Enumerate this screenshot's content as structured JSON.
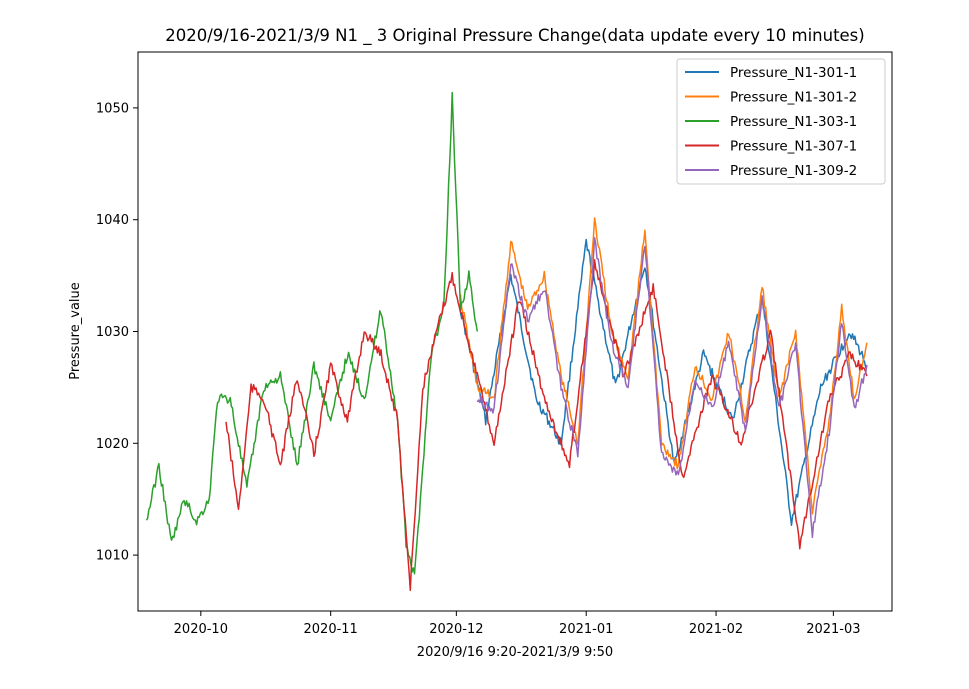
{
  "chart_data": {
    "type": "line",
    "title": "2020/9/16-2021/3/9 N1 _ 3  Original Pressure Change(data update every 10 minutes)",
    "xlabel": "2020/9/16 9:20-2021/3/9 9:50",
    "ylabel": "Pressure_value",
    "xlim": [
      "2020-09-16",
      "2021-03-15"
    ],
    "ylim": [
      1005,
      1055
    ],
    "x_ticks": [
      "2020-10",
      "2020-11",
      "2020-12",
      "2021-01",
      "2021-02",
      "2021-03"
    ],
    "x_tick_dates": [
      "2020-10-01",
      "2020-11-01",
      "2020-12-01",
      "2021-01-01",
      "2021-02-01",
      "2021-03-01"
    ],
    "y_ticks": [
      1010,
      1020,
      1030,
      1040,
      1050
    ],
    "legend_position": "upper right",
    "grid": false,
    "series": [
      {
        "name": "Pressure_N1-301-1",
        "color": "#1f77b4",
        "x": [
          "2020-12-02",
          "2020-12-08",
          "2020-12-14",
          "2020-12-20",
          "2020-12-26",
          "2021-01-01",
          "2021-01-08",
          "2021-01-15",
          "2021-01-22",
          "2021-01-29",
          "2021-02-05",
          "2021-02-12",
          "2021-02-19",
          "2021-02-26",
          "2021-03-05",
          "2021-03-09"
        ],
        "y": [
          1032,
          1022,
          1035,
          1024,
          1020,
          1038,
          1025,
          1036,
          1018,
          1028,
          1022,
          1033,
          1013,
          1025,
          1030,
          1027
        ]
      },
      {
        "name": "Pressure_N1-301-2",
        "color": "#ff7f0e",
        "x": [
          "2020-12-02",
          "2020-12-06",
          "2020-12-10",
          "2020-12-14",
          "2020-12-18",
          "2020-12-22",
          "2020-12-26",
          "2020-12-30",
          "2021-01-03",
          "2021-01-07",
          "2021-01-11",
          "2021-01-15",
          "2021-01-19",
          "2021-01-23",
          "2021-01-27",
          "2021-01-31",
          "2021-02-04",
          "2021-02-08",
          "2021-02-12",
          "2021-02-16",
          "2021-02-20",
          "2021-02-24",
          "2021-02-28",
          "2021-03-03",
          "2021-03-06",
          "2021-03-09"
        ],
        "y": [
          1033,
          1025,
          1024,
          1038,
          1032,
          1035,
          1026,
          1020,
          1040,
          1030,
          1026,
          1039,
          1020,
          1018,
          1027,
          1024,
          1030,
          1022,
          1034,
          1024,
          1030,
          1014,
          1022,
          1032,
          1024,
          1029
        ]
      },
      {
        "name": "Pressure_N1-303-1",
        "color": "#2ca02c",
        "x": [
          "2020-09-18",
          "2020-09-21",
          "2020-09-24",
          "2020-09-27",
          "2020-09-30",
          "2020-10-03",
          "2020-10-05",
          "2020-10-08",
          "2020-10-12",
          "2020-10-16",
          "2020-10-20",
          "2020-10-24",
          "2020-10-28",
          "2020-11-01",
          "2020-11-05",
          "2020-11-09",
          "2020-11-13",
          "2020-11-17",
          "2020-11-19",
          "2020-11-21",
          "2020-11-25",
          "2020-11-28",
          "2020-11-30",
          "2020-12-02",
          "2020-12-04",
          "2020-12-06"
        ],
        "y": [
          1013,
          1018,
          1011,
          1015,
          1013,
          1015,
          1024,
          1024,
          1016,
          1025,
          1026,
          1018,
          1027,
          1022,
          1028,
          1024,
          1032,
          1022,
          1011,
          1008,
          1028,
          1032,
          1051,
          1032,
          1035,
          1030
        ]
      },
      {
        "name": "Pressure_N1-307-1",
        "color": "#d62728",
        "x": [
          "2020-10-07",
          "2020-10-10",
          "2020-10-13",
          "2020-10-16",
          "2020-10-20",
          "2020-10-24",
          "2020-10-28",
          "2020-11-01",
          "2020-11-05",
          "2020-11-09",
          "2020-11-13",
          "2020-11-17",
          "2020-11-20",
          "2020-11-23",
          "2020-11-27",
          "2020-11-30",
          "2020-12-04",
          "2020-12-10",
          "2020-12-16",
          "2020-12-22",
          "2020-12-28",
          "2021-01-03",
          "2021-01-10",
          "2021-01-17",
          "2021-01-24",
          "2021-01-31",
          "2021-02-07",
          "2021-02-14",
          "2021-02-21",
          "2021-02-28",
          "2021-03-05",
          "2021-03-09"
        ],
        "y": [
          1022,
          1014,
          1025,
          1024,
          1018,
          1026,
          1019,
          1027,
          1022,
          1030,
          1028,
          1022,
          1007,
          1025,
          1031,
          1035,
          1029,
          1020,
          1033,
          1024,
          1018,
          1036,
          1026,
          1034,
          1017,
          1026,
          1020,
          1030,
          1011,
          1024,
          1028,
          1026
        ]
      },
      {
        "name": "Pressure_N1-309-2",
        "color": "#9467bd",
        "x": [
          "2020-12-06",
          "2020-12-10",
          "2020-12-14",
          "2020-12-18",
          "2020-12-22",
          "2020-12-26",
          "2020-12-30",
          "2021-01-03",
          "2021-01-07",
          "2021-01-11",
          "2021-01-15",
          "2021-01-19",
          "2021-01-23",
          "2021-01-27",
          "2021-01-31",
          "2021-02-04",
          "2021-02-08",
          "2021-02-12",
          "2021-02-16",
          "2021-02-20",
          "2021-02-24",
          "2021-02-28",
          "2021-03-03",
          "2021-03-06",
          "2021-03-09"
        ],
        "y": [
          1024,
          1023,
          1036,
          1031,
          1034,
          1025,
          1019,
          1038,
          1029,
          1025,
          1038,
          1019,
          1017,
          1026,
          1023,
          1029,
          1021,
          1033,
          1023,
          1029,
          1012,
          1021,
          1031,
          1023,
          1027
        ]
      }
    ]
  }
}
